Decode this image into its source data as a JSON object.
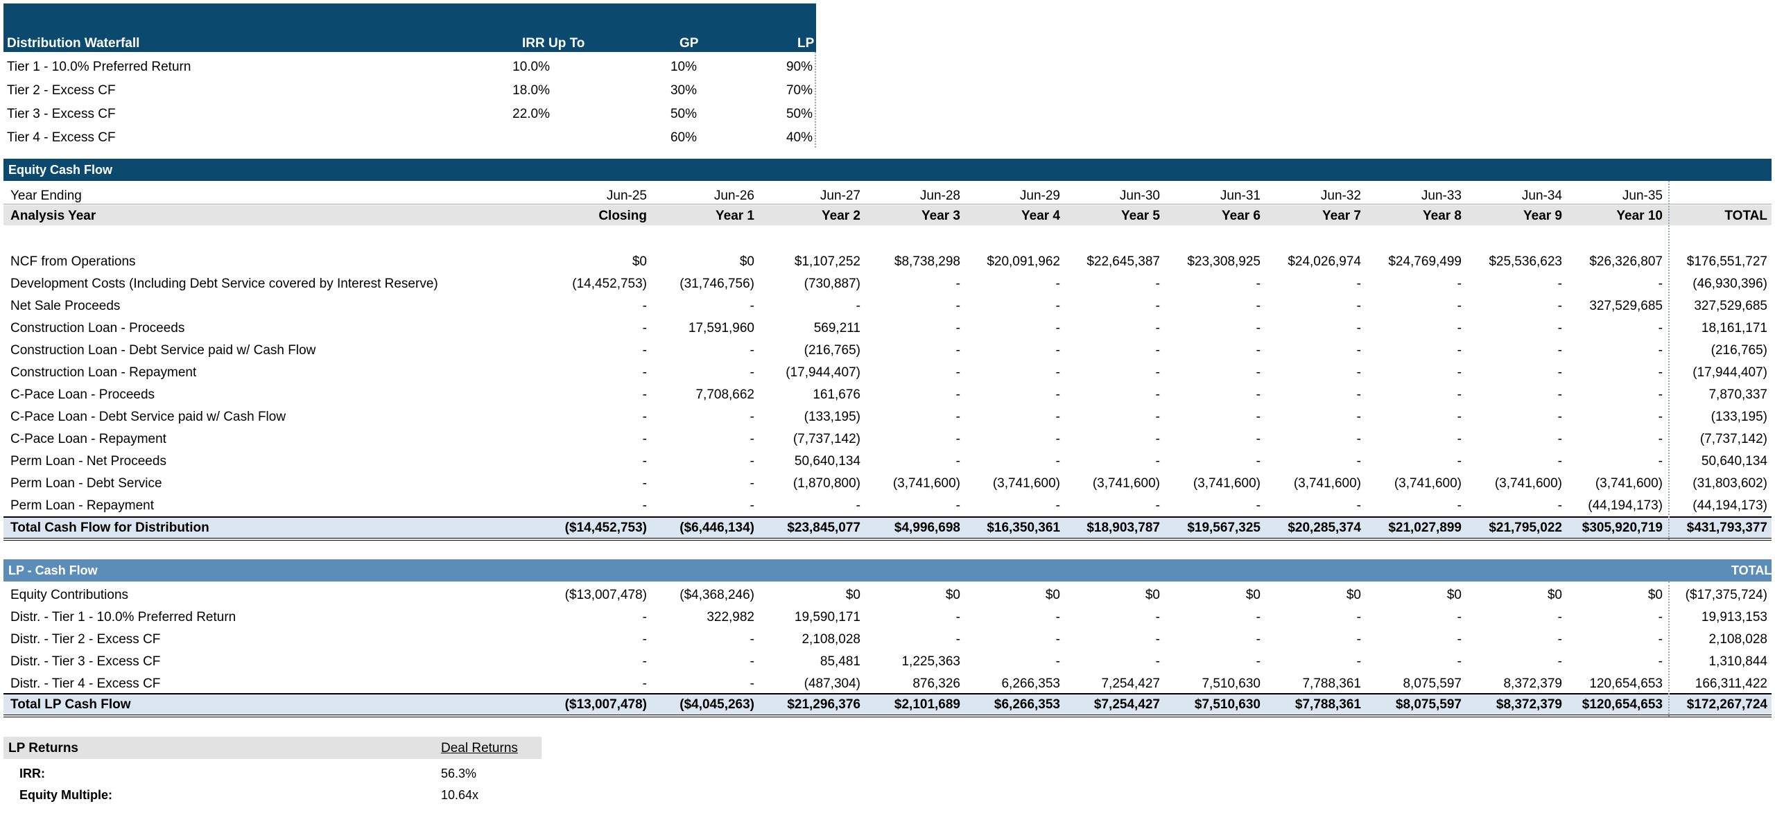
{
  "waterfall": {
    "title": "Distribution Waterfall",
    "headers": {
      "irr": "IRR Up To",
      "gp": "GP",
      "lp": "LP"
    },
    "rows": [
      {
        "label": "Tier 1 - 10.0% Preferred Return",
        "irr": "10.0%",
        "gp": "10%",
        "lp": "90%"
      },
      {
        "label": "Tier 2 - Excess CF",
        "irr": "18.0%",
        "gp": "30%",
        "lp": "70%"
      },
      {
        "label": "Tier 3 - Excess CF",
        "irr": "22.0%",
        "gp": "50%",
        "lp": "50%"
      },
      {
        "label": "Tier 4 - Excess CF",
        "irr": "",
        "gp": "60%",
        "lp": "40%"
      }
    ]
  },
  "equity": {
    "title": "Equity Cash Flow",
    "year_ending_label": "Year Ending",
    "dates": [
      "Jun-25",
      "Jun-26",
      "Jun-27",
      "Jun-28",
      "Jun-29",
      "Jun-30",
      "Jun-31",
      "Jun-32",
      "Jun-33",
      "Jun-34",
      "Jun-35",
      ""
    ],
    "analysis_label": "Analysis Year",
    "periods": [
      "Closing",
      "Year 1",
      "Year 2",
      "Year 3",
      "Year 4",
      "Year 5",
      "Year 6",
      "Year 7",
      "Year 8",
      "Year 9",
      "Year 10",
      "TOTAL"
    ],
    "rows": [
      {
        "label": "NCF from Operations",
        "values": [
          "$0",
          "$0",
          "$1,107,252",
          "$8,738,298",
          "$20,091,962",
          "$22,645,387",
          "$23,308,925",
          "$24,026,974",
          "$24,769,499",
          "$25,536,623",
          "$26,326,807",
          "$176,551,727"
        ]
      },
      {
        "label": "Development Costs (Including Debt Service covered by Interest Reserve)",
        "values": [
          "(14,452,753)",
          "(31,746,756)",
          "(730,887)",
          "-",
          "-",
          "-",
          "-",
          "-",
          "-",
          "-",
          "-",
          "(46,930,396)"
        ]
      },
      {
        "label": "Net Sale Proceeds",
        "values": [
          "-",
          "-",
          "-",
          "-",
          "-",
          "-",
          "-",
          "-",
          "-",
          "-",
          "327,529,685",
          "327,529,685"
        ]
      },
      {
        "label": "Construction Loan - Proceeds",
        "values": [
          "-",
          "17,591,960",
          "569,211",
          "-",
          "-",
          "-",
          "-",
          "-",
          "-",
          "-",
          "-",
          "18,161,171"
        ]
      },
      {
        "label": "Construction Loan - Debt Service paid w/ Cash Flow",
        "values": [
          "-",
          "-",
          "(216,765)",
          "-",
          "-",
          "-",
          "-",
          "-",
          "-",
          "-",
          "-",
          "(216,765)"
        ]
      },
      {
        "label": "Construction Loan - Repayment",
        "values": [
          "-",
          "-",
          "(17,944,407)",
          "-",
          "-",
          "-",
          "-",
          "-",
          "-",
          "-",
          "-",
          "(17,944,407)"
        ]
      },
      {
        "label": "C-Pace Loan - Proceeds",
        "values": [
          "-",
          "7,708,662",
          "161,676",
          "-",
          "-",
          "-",
          "-",
          "-",
          "-",
          "-",
          "-",
          "7,870,337"
        ]
      },
      {
        "label": "C-Pace Loan - Debt Service paid w/ Cash Flow",
        "values": [
          "-",
          "-",
          "(133,195)",
          "-",
          "-",
          "-",
          "-",
          "-",
          "-",
          "-",
          "-",
          "(133,195)"
        ]
      },
      {
        "label": "C-Pace Loan - Repayment",
        "values": [
          "-",
          "-",
          "(7,737,142)",
          "-",
          "-",
          "-",
          "-",
          "-",
          "-",
          "-",
          "-",
          "(7,737,142)"
        ]
      },
      {
        "label": "Perm Loan - Net Proceeds",
        "values": [
          "-",
          "-",
          "50,640,134",
          "-",
          "-",
          "-",
          "-",
          "-",
          "-",
          "-",
          "-",
          "50,640,134"
        ]
      },
      {
        "label": "Perm Loan - Debt Service",
        "values": [
          "-",
          "-",
          "(1,870,800)",
          "(3,741,600)",
          "(3,741,600)",
          "(3,741,600)",
          "(3,741,600)",
          "(3,741,600)",
          "(3,741,600)",
          "(3,741,600)",
          "(3,741,600)",
          "(31,803,602)"
        ]
      },
      {
        "label": "Perm Loan - Repayment",
        "values": [
          "-",
          "-",
          "-",
          "-",
          "-",
          "-",
          "-",
          "-",
          "-",
          "-",
          "(44,194,173)",
          "(44,194,173)"
        ]
      }
    ],
    "total": {
      "label": "Total Cash Flow for Distribution",
      "values": [
        "($14,452,753)",
        "($6,446,134)",
        "$23,845,077",
        "$4,996,698",
        "$16,350,361",
        "$18,903,787",
        "$19,567,325",
        "$20,285,374",
        "$21,027,899",
        "$21,795,022",
        "$305,920,719",
        "$431,793,377"
      ]
    }
  },
  "lp": {
    "title": "LP - Cash Flow",
    "total_header": "TOTAL",
    "rows": [
      {
        "label": "Equity Contributions",
        "values": [
          "($13,007,478)",
          "($4,368,246)",
          "$0",
          "$0",
          "$0",
          "$0",
          "$0",
          "$0",
          "$0",
          "$0",
          "$0",
          "($17,375,724)"
        ]
      },
      {
        "label": "Distr. - Tier 1 - 10.0% Preferred Return",
        "values": [
          "-",
          "322,982",
          "19,590,171",
          "-",
          "-",
          "-",
          "-",
          "-",
          "-",
          "-",
          "-",
          "19,913,153"
        ]
      },
      {
        "label": "Distr. - Tier 2 - Excess CF",
        "values": [
          "-",
          "-",
          "2,108,028",
          "-",
          "-",
          "-",
          "-",
          "-",
          "-",
          "-",
          "-",
          "2,108,028"
        ]
      },
      {
        "label": "Distr. - Tier 3 - Excess CF",
        "values": [
          "-",
          "-",
          "85,481",
          "1,225,363",
          "-",
          "-",
          "-",
          "-",
          "-",
          "-",
          "-",
          "1,310,844"
        ]
      },
      {
        "label": "Distr. - Tier 4 - Excess CF",
        "values": [
          "-",
          "-",
          "(487,304)",
          "876,326",
          "6,266,353",
          "7,254,427",
          "7,510,630",
          "7,788,361",
          "8,075,597",
          "8,372,379",
          "120,654,653",
          "166,311,422"
        ]
      }
    ],
    "total": {
      "label": "Total LP Cash Flow",
      "values": [
        "($13,007,478)",
        "($4,045,263)",
        "$21,296,376",
        "$2,101,689",
        "$6,266,353",
        "$7,254,427",
        "$7,510,630",
        "$7,788,361",
        "$8,075,597",
        "$8,372,379",
        "$120,654,653",
        "$172,267,724"
      ]
    }
  },
  "returns": {
    "title": "LP Returns",
    "col_header": "Deal Returns",
    "irr_label": "IRR:",
    "irr_value": "56.3%",
    "em_label": "Equity Multiple:",
    "em_value": "10.64x"
  }
}
